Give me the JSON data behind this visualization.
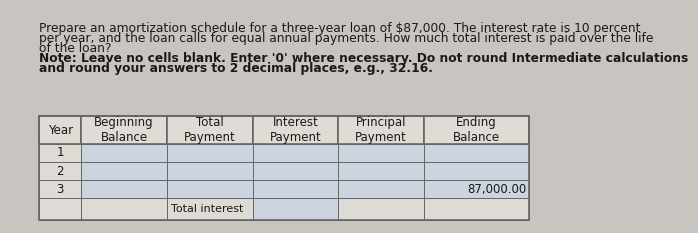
{
  "title_text": "Prepare an amortization schedule for a three-year loan of $87,000. The interest rate is 10 percent\nper year, and the loan calls for equal annual payments. How much total interest is paid over the life\nof the loan?",
  "note_line1": "Note: Leave no cells blank. Enter '0' where necessary. Do not round Intermediate calculations",
  "note_line2": "and round your answers to 2 decimal places, e.g., 32.16.",
  "col_headers": [
    "Year",
    "Beginning\nBalance",
    "Total\nPayment",
    "Interest\nPayment",
    "Principal\nPayment",
    "Ending\nBalance"
  ],
  "rows": [
    [
      "1",
      "",
      "",
      "",
      "",
      ""
    ],
    [
      "2",
      "",
      "",
      "",
      "",
      ""
    ],
    [
      "3",
      "",
      "",
      "",
      "",
      "87,000.00"
    ]
  ],
  "footer_label": "Total interest",
  "bg_color": "#c8c4c0",
  "header_cell_bg": "#e0dbd4",
  "data_cell_bg": "#ccd4e0",
  "year_cell_bg": "#dedad4",
  "footer_cell_bg": "#dedad4",
  "footer_input_bg": "#ccd4e0",
  "border_color": "#666666",
  "text_color": "#1a1a1a",
  "value_87": "87,000.00",
  "title_fontsize": 8.8,
  "note_fontsize": 8.8,
  "table_fontsize": 8.5
}
